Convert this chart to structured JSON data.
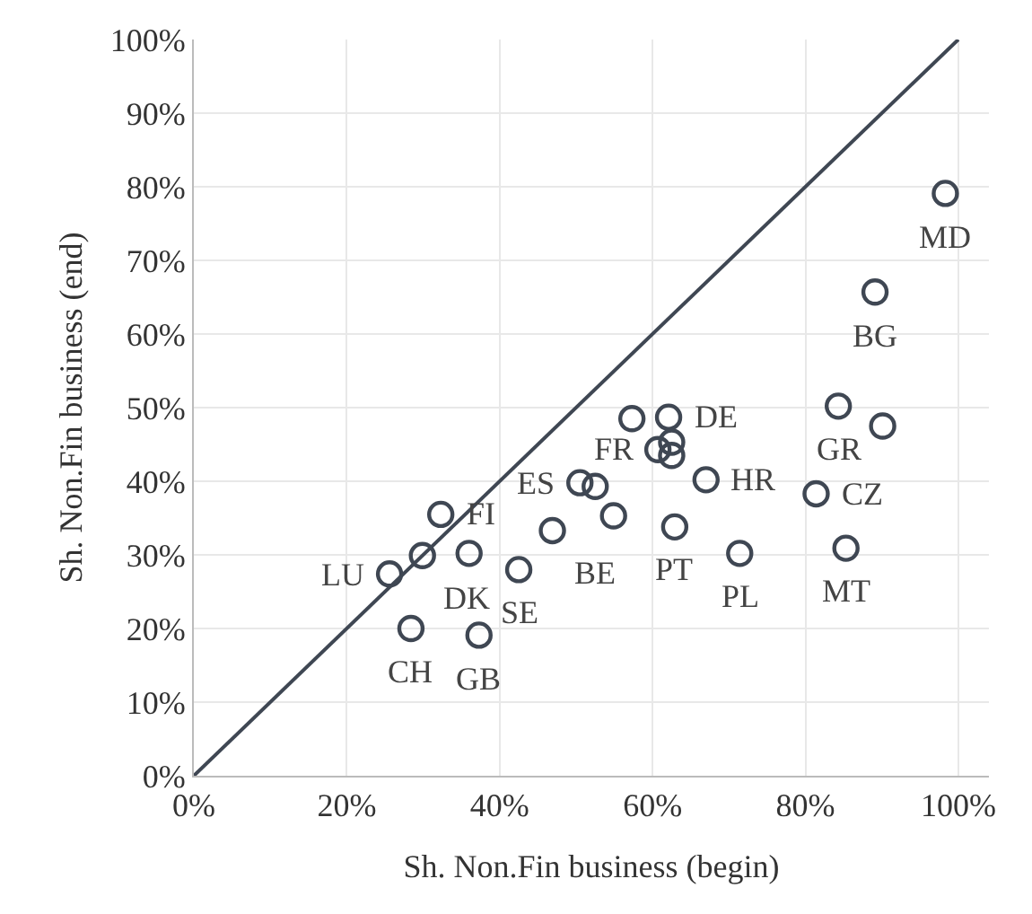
{
  "chart_data": {
    "type": "scatter",
    "xlabel": "Sh. Non.Fin business (begin)",
    "ylabel": "Sh. Non.Fin business (end)",
    "xlim": [
      0,
      104
    ],
    "ylim": [
      0,
      100
    ],
    "xticks": [
      {
        "value": 0,
        "label": "0%"
      },
      {
        "value": 20,
        "label": "20%"
      },
      {
        "value": 40,
        "label": "40%"
      },
      {
        "value": 60,
        "label": "60%"
      },
      {
        "value": 80,
        "label": "80%"
      },
      {
        "value": 100,
        "label": "100%"
      }
    ],
    "yticks": [
      {
        "value": 0,
        "label": "0%"
      },
      {
        "value": 10,
        "label": "10%"
      },
      {
        "value": 20,
        "label": "20%"
      },
      {
        "value": 30,
        "label": "30%"
      },
      {
        "value": 40,
        "label": "40%"
      },
      {
        "value": 50,
        "label": "50%"
      },
      {
        "value": 60,
        "label": "60%"
      },
      {
        "value": 70,
        "label": "70%"
      },
      {
        "value": 80,
        "label": "80%"
      },
      {
        "value": 90,
        "label": "90%"
      },
      {
        "value": 100,
        "label": "100%"
      }
    ],
    "grid": true,
    "marker": "circle",
    "series": [
      {
        "color": "#3f4753",
        "x": [
          98.3,
          89.1,
          84.3,
          90.1,
          62.1,
          57.3,
          60.7,
          62.5,
          62.5,
          50.5,
          52.5,
          67.0,
          81.4,
          32.3,
          54.9,
          46.9,
          62.9,
          29.9,
          36.0,
          25.6,
          42.5,
          71.4,
          85.3,
          28.4,
          37.3
        ],
        "values": [
          79.1,
          65.7,
          50.2,
          47.5,
          48.7,
          48.5,
          44.3,
          45.3,
          43.5,
          39.8,
          39.3,
          40.2,
          38.3,
          35.5,
          35.3,
          33.3,
          33.8,
          29.9,
          30.2,
          27.4,
          28.0,
          30.2,
          30.9,
          20.0,
          19.1
        ]
      },
      {
        "type": "line",
        "marker": "none",
        "color": "#3f4753",
        "x": [
          0,
          100
        ],
        "values": [
          0,
          100
        ]
      }
    ],
    "annotations": [
      {
        "text": "MD",
        "x": 98.3,
        "y": 79.1
      },
      {
        "text": "BG",
        "x": 89.1,
        "y": 65.7
      },
      {
        "text": "GR",
        "x": 84.3,
        "y": 50.2
      },
      {
        "text": "DE",
        "x": 62.1,
        "y": 48.7
      },
      {
        "text": "FR",
        "x": 60.7,
        "y": 44.3
      },
      {
        "text": "ES",
        "x": 50.5,
        "y": 39.8
      },
      {
        "text": "HR",
        "x": 67.0,
        "y": 40.2
      },
      {
        "text": "CZ",
        "x": 81.4,
        "y": 38.3
      },
      {
        "text": "FI",
        "x": 32.3,
        "y": 35.5
      },
      {
        "text": "BE",
        "x": 46.9,
        "y": 33.3
      },
      {
        "text": "PT",
        "x": 62.9,
        "y": 33.8
      },
      {
        "text": "PL",
        "x": 71.4,
        "y": 30.2
      },
      {
        "text": "MT",
        "x": 85.3,
        "y": 30.9
      },
      {
        "text": "LU",
        "x": 25.6,
        "y": 27.4
      },
      {
        "text": "DK",
        "x": 29.9,
        "y": 29.9
      },
      {
        "text": "SE",
        "x": 42.5,
        "y": 28.0
      },
      {
        "text": "CH",
        "x": 28.4,
        "y": 20.0
      },
      {
        "text": "GB",
        "x": 37.3,
        "y": 19.1
      }
    ]
  }
}
